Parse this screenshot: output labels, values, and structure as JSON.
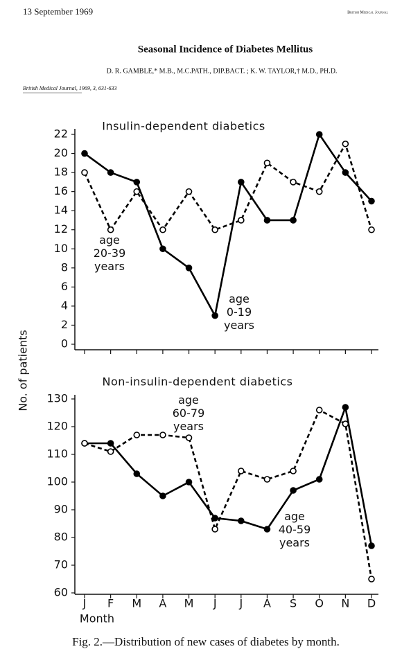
{
  "header": {
    "date": "13 September 1969",
    "journal": "British Medical Journal",
    "title": "Seasonal Incidence of Diabetes Mellitus",
    "authors": "D. R. GAMBLE,* M.B., M.C.PATH., DIP.BACT. ; K. W. TAYLOR,† M.D., PH.D.",
    "citation": "British Medical Journal, 1969, 3, 631-633"
  },
  "y_label": "No. of patients",
  "caption": "Fig. 2.—Distribution of new cases of diabetes by month.",
  "chart_data": [
    {
      "type": "line",
      "title": "Insulin-dependent diabetics",
      "ylim": [
        0,
        22
      ],
      "yticks": [
        0,
        2,
        4,
        6,
        8,
        10,
        12,
        14,
        16,
        18,
        20,
        22
      ],
      "series": [
        {
          "name": "age 0-19 years",
          "color": "#000000",
          "style": "solid",
          "marker": "filled",
          "values": [
            20,
            18,
            17,
            10,
            8,
            3,
            17,
            13,
            13,
            22,
            18,
            15
          ]
        },
        {
          "name": "age 20-39 years",
          "color": "#000000",
          "style": "dashed",
          "marker": "open",
          "values": [
            18,
            12,
            16,
            12,
            16,
            12,
            13,
            19,
            17,
            16,
            21,
            12
          ]
        }
      ]
    },
    {
      "type": "line",
      "title": "Non-insulin-dependent diabetics",
      "x_label": "Month",
      "categories": [
        "J",
        "F",
        "M",
        "A",
        "M",
        "J",
        "J",
        "A",
        "S",
        "O",
        "N",
        "D"
      ],
      "ylim": [
        60,
        130
      ],
      "yticks": [
        60,
        70,
        80,
        90,
        100,
        110,
        120,
        130
      ],
      "series": [
        {
          "name": "age 40-59 years",
          "color": "#000000",
          "style": "solid",
          "marker": "filled",
          "values": [
            114,
            114,
            103,
            95,
            100,
            87,
            86,
            83,
            97,
            101,
            127,
            77
          ]
        },
        {
          "name": "age 60-79 years",
          "color": "#000000",
          "style": "dashed",
          "marker": "open",
          "values": [
            114,
            111,
            117,
            117,
            116,
            83,
            104,
            101,
            104,
            126,
            121,
            65
          ]
        }
      ]
    }
  ]
}
